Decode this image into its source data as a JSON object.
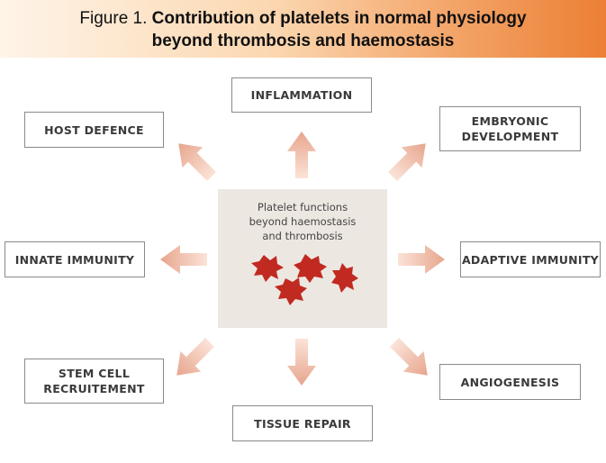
{
  "title": {
    "label": "Figure 1.",
    "line1": "Contribution of platelets in normal physiology",
    "line2": "beyond thrombosis and haemostasis"
  },
  "center": {
    "line1": "Platelet functions",
    "line2": "beyond haemostasis",
    "line3": "and thrombosis"
  },
  "nodes": {
    "inflammation": "INFLAMMATION",
    "host_defence": "HOST DEFENCE",
    "embryonic_1": "EMBRYONIC",
    "embryonic_2": "DEVELOPMENT",
    "innate_immunity": "INNATE IMMUNITY",
    "adaptive_immunity": "ADAPTIVE IMMUNITY",
    "stem_cell_1": "STEM CELL",
    "stem_cell_2": "RECRUITEMENT",
    "angiogenesis": "ANGIOGENESIS",
    "tissue_repair": "TISSUE REPAIR"
  },
  "colors": {
    "arrow_light": "#fbe3d8",
    "arrow_dark": "#e7a58d",
    "platelet": "#c02a20",
    "banner_end": "#ec7f34",
    "center_fill": "#ede7e2"
  }
}
